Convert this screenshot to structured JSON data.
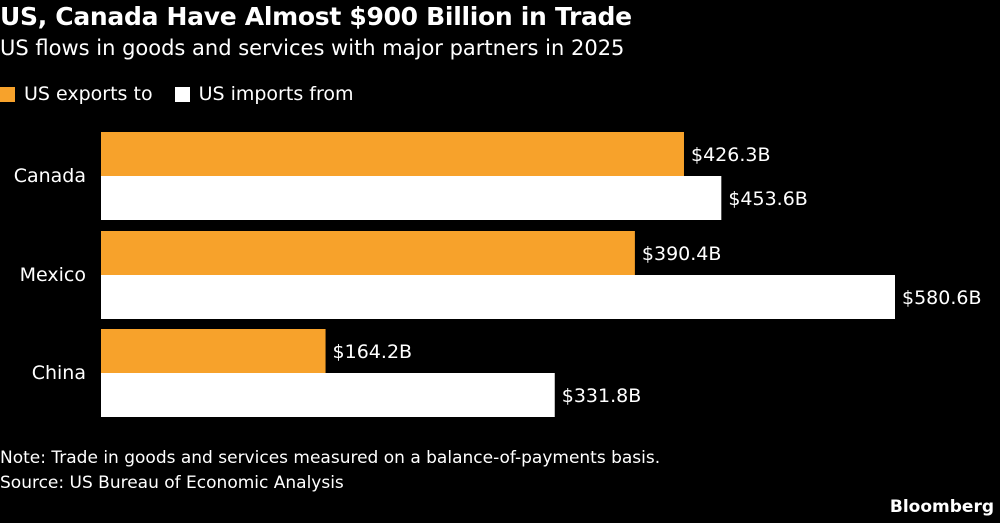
{
  "header": {
    "title": "US, Canada Have Almost $900 Billion in Trade",
    "subtitle": "US flows in goods and services with major partners in 2025"
  },
  "legend": {
    "items": [
      {
        "label": "US exports to",
        "color": "#f7a22b"
      },
      {
        "label": "US imports from",
        "color": "#ffffff"
      }
    ]
  },
  "chart_data": {
    "type": "bar",
    "orientation": "horizontal",
    "categories": [
      "Canada",
      "Mexico",
      "China"
    ],
    "series": [
      {
        "name": "US exports to",
        "color": "#f7a22b",
        "values": [
          426.3,
          390.4,
          164.2
        ],
        "labels": [
          "$426.3B",
          "$390.4B",
          "$164.2B"
        ]
      },
      {
        "name": "US imports from",
        "color": "#ffffff",
        "values": [
          453.6,
          580.6,
          331.8
        ],
        "labels": [
          "$453.6B",
          "$580.6B",
          "$331.8B"
        ]
      }
    ],
    "xlim": [
      0,
      580.6
    ],
    "grid": false,
    "legend_position": "top-left"
  },
  "footer": {
    "note": "Note: Trade in goods and services measured on a balance-of-payments basis.",
    "source": "Source: US Bureau of Economic Analysis",
    "brand": "Bloomberg"
  }
}
